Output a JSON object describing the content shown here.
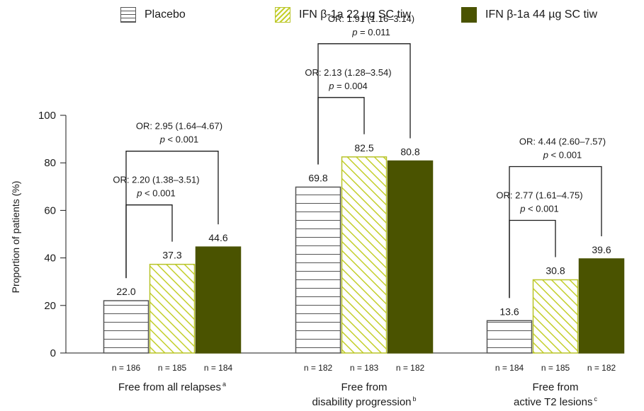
{
  "chart_data": {
    "type": "bar",
    "ylabel": "Proportion of patients (%)",
    "ylim": [
      0,
      100
    ],
    "yticks": [
      0,
      20,
      40,
      60,
      80,
      100
    ],
    "legend_placement": "top",
    "groups": [
      {
        "label_lines": [
          "Free from all relapses"
        ],
        "label_superscript": "a",
        "bars": [
          {
            "series": "Placebo",
            "value": 22.0,
            "label": "22.0",
            "n": "n = 186"
          },
          {
            "series": "IFN β-1a 22 µg SC tiw",
            "value": 37.3,
            "label": "37.3",
            "n": "n = 185"
          },
          {
            "series": "IFN β-1a 44 µg SC tiw",
            "value": 44.6,
            "label": "44.6",
            "n": "n = 184"
          }
        ],
        "comparisons": [
          {
            "to": 1,
            "or_text": "OR: 2.20 (1.38–3.51)",
            "p_text": "p < 0.001"
          },
          {
            "to": 2,
            "or_text": "OR: 2.95 (1.64–4.67)",
            "p_text": "p < 0.001"
          }
        ]
      },
      {
        "label_lines": [
          "Free from",
          "disability progression"
        ],
        "label_superscript": "b",
        "bars": [
          {
            "series": "Placebo",
            "value": 69.8,
            "label": "69.8",
            "n": "n = 182"
          },
          {
            "series": "IFN β-1a 22 µg SC tiw",
            "value": 82.5,
            "label": "82.5",
            "n": "n = 183"
          },
          {
            "series": "IFN β-1a 44 µg SC tiw",
            "value": 80.8,
            "label": "80.8",
            "n": "n = 182"
          }
        ],
        "comparisons": [
          {
            "to": 1,
            "or_text": "OR: 2.13 (1.28–3.54)",
            "p_text": "p = 0.004"
          },
          {
            "to": 2,
            "or_text": "OR: 1.91 (1.16–3.14)",
            "p_text": "p = 0.011"
          }
        ]
      },
      {
        "label_lines": [
          "Free from",
          "active T2 lesions"
        ],
        "label_superscript": "c",
        "bars": [
          {
            "series": "Placebo",
            "value": 13.6,
            "label": "13.6",
            "n": "n = 184"
          },
          {
            "series": "IFN β-1a 22 µg SC tiw",
            "value": 30.8,
            "label": "30.8",
            "n": "n = 185"
          },
          {
            "series": "IFN β-1a 44 µg SC tiw",
            "value": 39.6,
            "label": "39.6",
            "n": "n = 182"
          }
        ],
        "comparisons": [
          {
            "to": 1,
            "or_text": "OR: 2.77 (1.61–4.75)",
            "p_text": "p < 0.001"
          },
          {
            "to": 2,
            "or_text": "OR: 4.44 (2.60–7.57)",
            "p_text": "p < 0.001"
          }
        ]
      }
    ]
  },
  "legend": [
    {
      "name": "Placebo",
      "swatch": "placebo"
    },
    {
      "name": "IFN β-1a 22 µg SC tiw",
      "swatch": "ifn22"
    },
    {
      "name": "IFN β-1a 44 µg SC tiw",
      "swatch": "ifn44"
    }
  ],
  "colors": {
    "placebo_stroke": "#555555",
    "ifn22_stroke": "#b8c42a",
    "ifn22_hatch": "#c4cf2c",
    "ifn44_fill": "#4a5300",
    "axis": "#1a1a1a"
  }
}
